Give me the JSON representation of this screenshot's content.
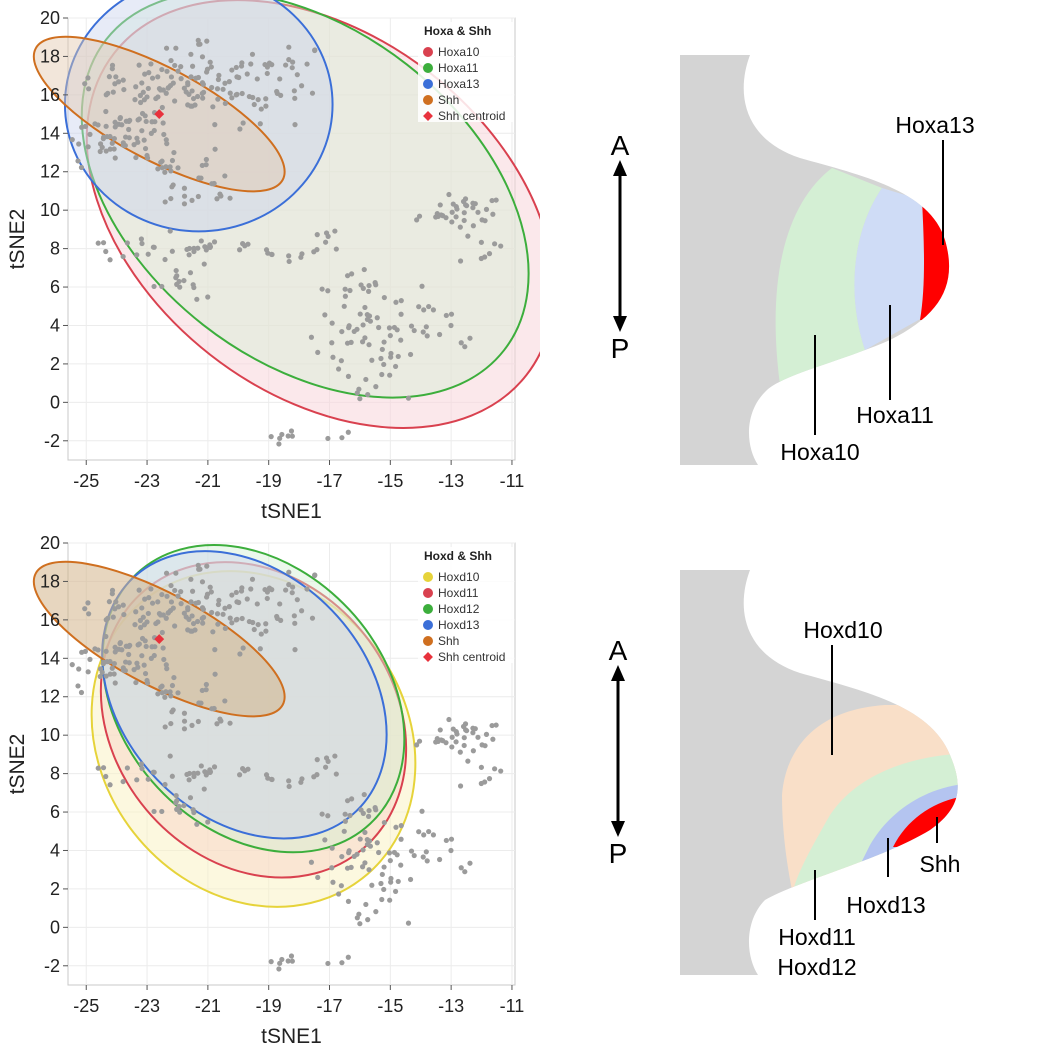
{
  "colors": {
    "points": "#9b9b9b",
    "red": "#d9414f",
    "green": "#3cae3c",
    "blue": "#3b6fd8",
    "orange": "#cf6f1f",
    "yellow": "#e6d33a",
    "centroid": "#e8323c",
    "bud_gray": "#d4d4d4"
  },
  "chart_data": [
    {
      "type": "scatter",
      "title": "",
      "xlabel": "tSNE1",
      "ylabel": "tSNE2",
      "xlim": [
        -25.6,
        -10.9
      ],
      "ylim": [
        -3,
        20
      ],
      "xticks": [
        "-25",
        "-23",
        "-21",
        "-19",
        "-17",
        "-15",
        "-13",
        "-11"
      ],
      "yticks": [
        "-2",
        "0",
        "2",
        "4",
        "6",
        "8",
        "10",
        "12",
        "14",
        "16",
        "18",
        "20"
      ],
      "grid": true,
      "legend_position": "top-right",
      "legend_title": "Hoxa & Shh",
      "legend": [
        {
          "label": "Hoxa10",
          "color": "#d9414f",
          "marker": "circle"
        },
        {
          "label": "Hoxa11",
          "color": "#3cae3c",
          "marker": "circle"
        },
        {
          "label": "Hoxa13",
          "color": "#3b6fd8",
          "marker": "circle"
        },
        {
          "label": "Shh",
          "color": "#cf6f1f",
          "marker": "circle"
        },
        {
          "label": "Shh centroid",
          "color": "#e8323c",
          "marker": "diamond"
        }
      ],
      "ellipses": [
        {
          "name": "Hoxa10",
          "color": "#d9414f",
          "fill": "#f7d6db",
          "fill_opacity": 0.55,
          "center": [
            -17.3,
            9.8
          ],
          "rx": 8.6,
          "ry": 9.3,
          "angle": 38
        },
        {
          "name": "Hoxa11",
          "color": "#3cae3c",
          "fill": "#d2efd2",
          "fill_opacity": 0.4,
          "center": [
            -17.8,
            10.8
          ],
          "rx": 8.3,
          "ry": 8.6,
          "angle": 38
        },
        {
          "name": "Hoxa13",
          "color": "#3b6fd8",
          "fill": "#c9d3ee",
          "fill_opacity": 0.45,
          "center": [
            -21.3,
            15.5
          ],
          "rx": 4.4,
          "ry": 6.6,
          "angle": 0
        },
        {
          "name": "Shh",
          "color": "#cf6f1f",
          "fill": "#e2c7ac",
          "fill_opacity": 0.45,
          "center": [
            -22.6,
            15.0
          ],
          "rx": 4.6,
          "ry": 2.4,
          "angle": 28
        }
      ],
      "centroid": [
        -22.6,
        15.0
      ],
      "clusters": [
        {
          "cx": -22.0,
          "cy": 16.6,
          "sx": 1.6,
          "sy": 0.7,
          "n": 85
        },
        {
          "cx": -24.3,
          "cy": 13.8,
          "sx": 0.8,
          "sy": 0.9,
          "n": 45
        },
        {
          "cx": -22.8,
          "cy": 14.4,
          "sx": 0.5,
          "sy": 1.4,
          "n": 28
        },
        {
          "cx": -19.4,
          "cy": 16.0,
          "sx": 0.9,
          "sy": 1.1,
          "n": 30
        },
        {
          "cx": -18.3,
          "cy": 17.2,
          "sx": 0.5,
          "sy": 0.9,
          "n": 14
        },
        {
          "cx": -21.3,
          "cy": 11.0,
          "sx": 0.6,
          "sy": 0.9,
          "n": 22
        },
        {
          "cx": -22.3,
          "cy": 12.3,
          "sx": 0.3,
          "sy": 0.3,
          "n": 8
        },
        {
          "cx": -23.3,
          "cy": 8.0,
          "sx": 1.4,
          "sy": 0.3,
          "n": 26
        },
        {
          "cx": -21.9,
          "cy": 6.3,
          "sx": 0.5,
          "sy": 0.9,
          "n": 16
        },
        {
          "cx": -21.1,
          "cy": 8.0,
          "sx": 0.3,
          "sy": 0.2,
          "n": 5
        },
        {
          "cx": -18.0,
          "cy": 7.8,
          "sx": 0.5,
          "sy": 0.3,
          "n": 10
        },
        {
          "cx": -16.9,
          "cy": 8.7,
          "sx": 0.2,
          "sy": 0.7,
          "n": 6
        },
        {
          "cx": -15.7,
          "cy": 3.9,
          "sx": 0.9,
          "sy": 1.1,
          "n": 55
        },
        {
          "cx": -13.6,
          "cy": 4.0,
          "sx": 0.7,
          "sy": 0.9,
          "n": 15
        },
        {
          "cx": -13.0,
          "cy": 9.8,
          "sx": 0.6,
          "sy": 0.4,
          "n": 26
        },
        {
          "cx": -12.0,
          "cy": 8.8,
          "sx": 0.7,
          "sy": 1.3,
          "n": 16
        },
        {
          "cx": -15.8,
          "cy": 0.9,
          "sx": 0.5,
          "sy": 0.6,
          "n": 10
        },
        {
          "cx": -18.5,
          "cy": -1.7,
          "sx": 0.2,
          "sy": 0.2,
          "n": 7
        },
        {
          "cx": -16.6,
          "cy": -1.8,
          "sx": 0.2,
          "sy": 0.2,
          "n": 3
        },
        {
          "cx": -16.0,
          "cy": 6.0,
          "sx": 0.6,
          "sy": 0.5,
          "n": 8
        },
        {
          "cx": -19.6,
          "cy": 8.4,
          "sx": 0.2,
          "sy": 0.1,
          "n": 3
        },
        {
          "cx": -21.9,
          "cy": 18.4,
          "sx": 0.4,
          "sy": 0.2,
          "n": 8
        }
      ]
    },
    {
      "type": "scatter",
      "title": "",
      "xlabel": "tSNE1",
      "ylabel": "tSNE2",
      "xlim": [
        -25.6,
        -10.9
      ],
      "ylim": [
        -3,
        20
      ],
      "xticks": [
        "-25",
        "-23",
        "-21",
        "-19",
        "-17",
        "-15",
        "-13",
        "-11"
      ],
      "yticks": [
        "-2",
        "0",
        "2",
        "4",
        "6",
        "8",
        "10",
        "12",
        "14",
        "16",
        "18",
        "20"
      ],
      "grid": true,
      "legend_position": "top-right",
      "legend_title": "Hoxd & Shh",
      "legend": [
        {
          "label": "Hoxd10",
          "color": "#e6d33a",
          "marker": "circle"
        },
        {
          "label": "Hoxd11",
          "color": "#d9414f",
          "marker": "circle"
        },
        {
          "label": "Hoxd12",
          "color": "#3cae3c",
          "marker": "circle"
        },
        {
          "label": "Hoxd13",
          "color": "#3b6fd8",
          "marker": "circle"
        },
        {
          "label": "Shh",
          "color": "#cf6f1f",
          "marker": "circle"
        },
        {
          "label": "Shh centroid",
          "color": "#e8323c",
          "marker": "diamond"
        }
      ],
      "ellipses": [
        {
          "name": "Hoxd10",
          "color": "#e6d33a",
          "fill": "#faf3c4",
          "fill_opacity": 0.55,
          "center": [
            -19.5,
            9.8
          ],
          "rx": 5.0,
          "ry": 9.2,
          "angle": -38
        },
        {
          "name": "Hoxd11",
          "color": "#d9414f",
          "fill": "#f7d3c8",
          "fill_opacity": 0.5,
          "center": [
            -19.5,
            10.8
          ],
          "rx": 4.6,
          "ry": 8.8,
          "angle": -40
        },
        {
          "name": "Hoxd12",
          "color": "#3cae3c",
          "fill": "#d2efd2",
          "fill_opacity": 0.45,
          "center": [
            -19.5,
            11.9
          ],
          "rx": 4.3,
          "ry": 8.9,
          "angle": -43
        },
        {
          "name": "Hoxd13",
          "color": "#3b6fd8",
          "fill": "#c9d3ee",
          "fill_opacity": 0.45,
          "center": [
            -19.8,
            12.1
          ],
          "rx": 4.0,
          "ry": 8.4,
          "angle": -44
        },
        {
          "name": "Shh",
          "color": "#cf6f1f",
          "fill": "#d4b48a",
          "fill_opacity": 0.55,
          "center": [
            -22.6,
            15.0
          ],
          "rx": 4.6,
          "ry": 2.4,
          "angle": 28
        }
      ],
      "centroid": [
        -22.6,
        15.0
      ],
      "clusters": [
        {
          "cx": -22.0,
          "cy": 16.6,
          "sx": 1.6,
          "sy": 0.7,
          "n": 85
        },
        {
          "cx": -24.3,
          "cy": 13.8,
          "sx": 0.8,
          "sy": 0.9,
          "n": 45
        },
        {
          "cx": -22.8,
          "cy": 14.4,
          "sx": 0.5,
          "sy": 1.4,
          "n": 28
        },
        {
          "cx": -19.4,
          "cy": 16.0,
          "sx": 0.9,
          "sy": 1.1,
          "n": 30
        },
        {
          "cx": -18.3,
          "cy": 17.2,
          "sx": 0.5,
          "sy": 0.9,
          "n": 14
        },
        {
          "cx": -21.3,
          "cy": 11.0,
          "sx": 0.6,
          "sy": 0.9,
          "n": 22
        },
        {
          "cx": -22.3,
          "cy": 12.3,
          "sx": 0.3,
          "sy": 0.3,
          "n": 8
        },
        {
          "cx": -23.3,
          "cy": 8.0,
          "sx": 1.4,
          "sy": 0.3,
          "n": 26
        },
        {
          "cx": -21.9,
          "cy": 6.3,
          "sx": 0.5,
          "sy": 0.9,
          "n": 16
        },
        {
          "cx": -21.1,
          "cy": 8.0,
          "sx": 0.3,
          "sy": 0.2,
          "n": 5
        },
        {
          "cx": -18.0,
          "cy": 7.8,
          "sx": 0.5,
          "sy": 0.3,
          "n": 10
        },
        {
          "cx": -16.9,
          "cy": 8.7,
          "sx": 0.2,
          "sy": 0.7,
          "n": 6
        },
        {
          "cx": -15.7,
          "cy": 3.9,
          "sx": 0.9,
          "sy": 1.1,
          "n": 55
        },
        {
          "cx": -13.6,
          "cy": 4.0,
          "sx": 0.7,
          "sy": 0.9,
          "n": 15
        },
        {
          "cx": -13.0,
          "cy": 9.8,
          "sx": 0.6,
          "sy": 0.4,
          "n": 26
        },
        {
          "cx": -12.0,
          "cy": 8.8,
          "sx": 0.7,
          "sy": 1.3,
          "n": 16
        },
        {
          "cx": -15.8,
          "cy": 0.9,
          "sx": 0.5,
          "sy": 0.6,
          "n": 10
        },
        {
          "cx": -18.5,
          "cy": -1.7,
          "sx": 0.2,
          "sy": 0.2,
          "n": 7
        },
        {
          "cx": -16.6,
          "cy": -1.8,
          "sx": 0.2,
          "sy": 0.2,
          "n": 3
        },
        {
          "cx": -16.0,
          "cy": 6.0,
          "sx": 0.6,
          "sy": 0.5,
          "n": 8
        },
        {
          "cx": -19.6,
          "cy": 8.4,
          "sx": 0.2,
          "sy": 0.1,
          "n": 3
        },
        {
          "cx": -21.9,
          "cy": 18.4,
          "sx": 0.4,
          "sy": 0.2,
          "n": 8
        }
      ]
    }
  ],
  "diagram_top": {
    "axis_top": "A",
    "axis_bottom": "P",
    "zones": [
      {
        "label": "Hoxa10",
        "color": "#d4efd4"
      },
      {
        "label": "Hoxa11",
        "color": "#cfdcf6"
      },
      {
        "label": "Hoxa13",
        "color": "#ff0000"
      }
    ]
  },
  "diagram_bottom": {
    "axis_top": "A",
    "axis_bottom": "P",
    "zones": [
      {
        "label": "Hoxd10",
        "color": "#f9dfc8"
      },
      {
        "label": "Hoxd11",
        "color": "#d4efd4"
      },
      {
        "label": "Hoxd12",
        "color": ""
      },
      {
        "label": "Hoxd13",
        "color": "#b4c4f0"
      },
      {
        "label": "Shh",
        "color": "#ff0000"
      }
    ]
  }
}
